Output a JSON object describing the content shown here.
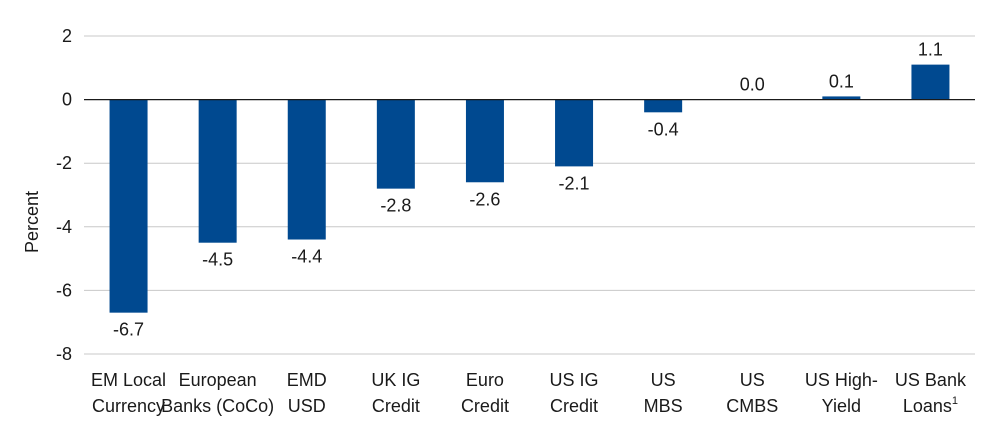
{
  "chart_data": {
    "type": "bar",
    "title": "",
    "xlabel": "",
    "ylabel": "Percent",
    "ylim": [
      -8,
      2
    ],
    "yticks": [
      2,
      0,
      -2,
      -4,
      -6,
      -8
    ],
    "grid": true,
    "bar_color": "#004990",
    "grid_color": "#c8c8c8",
    "categories": [
      [
        "EM Local",
        "Currency"
      ],
      [
        "European",
        "Banks (CoCo)"
      ],
      [
        "EMD",
        "USD"
      ],
      [
        "UK IG",
        "Credit"
      ],
      [
        "Euro",
        "Credit"
      ],
      [
        "US IG",
        "Credit"
      ],
      [
        "US",
        "MBS"
      ],
      [
        "US",
        "CMBS"
      ],
      [
        "US High-",
        "Yield"
      ],
      [
        "US Bank",
        "Loans"
      ]
    ],
    "category_superscripts": [
      "",
      "",
      "",
      "",
      "",
      "",
      "",
      "",
      "",
      "1"
    ],
    "values": [
      -6.7,
      -4.5,
      -4.4,
      -2.8,
      -2.6,
      -2.1,
      -0.4,
      0.0,
      0.1,
      1.1
    ],
    "value_labels": [
      "-6.7",
      "-4.5",
      "-4.4",
      "-2.8",
      "-2.6",
      "-2.1",
      "-0.4",
      "0.0",
      "0.1",
      "1.1"
    ]
  }
}
